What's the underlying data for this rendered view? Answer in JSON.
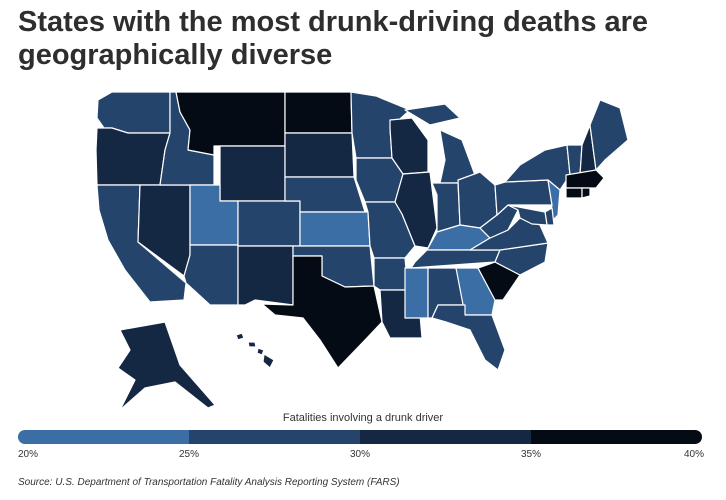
{
  "title": "States with the most drunk-driving deaths are geographically diverse",
  "legend": {
    "title": "Fatalities involving a drunk driver",
    "ticks": [
      "20%",
      "25%",
      "30%",
      "35%",
      "40%"
    ],
    "bins": [
      {
        "range": [
          20,
          25
        ],
        "color": "#3b6ea5"
      },
      {
        "range": [
          25,
          30
        ],
        "color": "#25446b"
      },
      {
        "range": [
          30,
          35
        ],
        "color": "#142844"
      },
      {
        "range": [
          35,
          40
        ],
        "color": "#050b14"
      }
    ]
  },
  "source": "Source: U.S. Department of Transportation Fatality Analysis Reporting System (FARS)",
  "map_data": {
    "WA": 2,
    "OR": 3,
    "CA": 2,
    "NV": 3,
    "ID": 2,
    "MT": 4,
    "WY": 3,
    "UT": 1,
    "AZ": 2,
    "CO": 2,
    "NM": 3,
    "ND": 4,
    "SD": 3,
    "NE": 2,
    "KS": 1,
    "OK": 2,
    "TX": 4,
    "MN": 2,
    "IA": 2,
    "MO": 2,
    "AR": 2,
    "LA": 3,
    "WI": 3,
    "IL": 3,
    "MI": 2,
    "IN": 2,
    "OH": 2,
    "KY": 1,
    "TN": 2,
    "MS": 1,
    "AL": 2,
    "GA": 1,
    "FL": 2,
    "SC": 4,
    "NC": 2,
    "VA": 2,
    "WV": 2,
    "PA": 2,
    "NY": 2,
    "VT": 2,
    "NH": 3,
    "ME": 2,
    "MA": 4,
    "CT": 4,
    "RI": 4,
    "NJ": 1,
    "DE": 2,
    "MD": 2,
    "AK": 3,
    "HI": 3
  }
}
